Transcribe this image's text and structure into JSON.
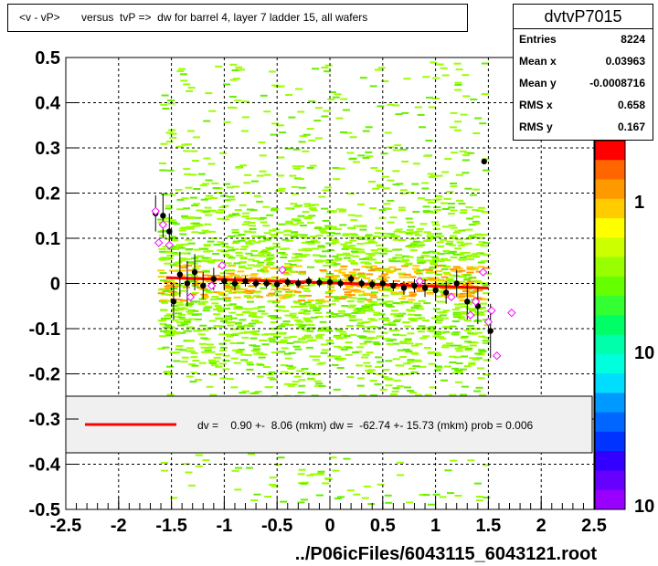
{
  "title": "<v - vP>       versus  tvP =>  dw for barrel 4, layer 7 ladder 15, all wafers",
  "stats": {
    "name": "dvtvP7015",
    "rows": [
      {
        "key": "Entries",
        "value": "8224"
      },
      {
        "key": "Mean x",
        "value": "0.03963"
      },
      {
        "key": "Mean y",
        "value": "-0.0008716"
      },
      {
        "key": "RMS x",
        "value": "0.658"
      },
      {
        "key": "RMS y",
        "value": "0.167"
      }
    ]
  },
  "legend": {
    "text": "dv =    0.90 +-  8.06 (mkm) dw =  -62.74 +- 15.73 (mkm) prob = 0.006",
    "line_color": "#ff0000"
  },
  "colors": {
    "fit_line": "#ff0000",
    "profile_points": "#000000",
    "open_markers": "#ff00ff"
  },
  "chart_data": {
    "type": "scatter",
    "xlabel": "../P06icFiles/6043115_6043121.root",
    "ylabel": "",
    "xlim": [
      -2.5,
      2.5
    ],
    "ylim": [
      -0.5,
      0.5
    ],
    "x_ticks": [
      "-2.5",
      "-2",
      "-1.5",
      "-1",
      "-0.5",
      "0",
      "0.5",
      "1",
      "1.5",
      "2",
      "2.5"
    ],
    "y_ticks": [
      "-0.5",
      "-0.4",
      "-0.3",
      "-0.2",
      "-0.1",
      "0",
      "0.1",
      "0.2",
      "0.3",
      "0.4",
      "0.5"
    ],
    "grid": true,
    "log_z": true,
    "z_ticks": [
      "1",
      "10",
      "10"
    ],
    "fit_line": {
      "x": [
        -1.55,
        1.5
      ],
      "y": [
        0.013,
        -0.01
      ]
    },
    "profile": [
      {
        "x": -1.65,
        "y": 0.155,
        "err": 0.04
      },
      {
        "x": -1.58,
        "y": 0.15,
        "err": 0.05
      },
      {
        "x": -1.52,
        "y": 0.115,
        "err": 0.04
      },
      {
        "x": -1.48,
        "y": -0.04,
        "err": 0.04
      },
      {
        "x": -1.42,
        "y": 0.02,
        "err": 0.05
      },
      {
        "x": -1.35,
        "y": 0.0,
        "err": 0.05
      },
      {
        "x": -1.28,
        "y": 0.025,
        "err": 0.04
      },
      {
        "x": -1.2,
        "y": -0.005,
        "err": 0.03
      },
      {
        "x": -1.1,
        "y": 0.01,
        "err": 0.025
      },
      {
        "x": -1.0,
        "y": 0.005,
        "err": 0.02
      },
      {
        "x": -0.9,
        "y": 0.0,
        "err": 0.015
      },
      {
        "x": -0.8,
        "y": 0.005,
        "err": 0.012
      },
      {
        "x": -0.7,
        "y": 0.0,
        "err": 0.01
      },
      {
        "x": -0.6,
        "y": 0.0,
        "err": 0.01
      },
      {
        "x": -0.5,
        "y": -0.002,
        "err": 0.01
      },
      {
        "x": -0.4,
        "y": 0.003,
        "err": 0.01
      },
      {
        "x": -0.3,
        "y": 0.0,
        "err": 0.01
      },
      {
        "x": -0.2,
        "y": 0.005,
        "err": 0.01
      },
      {
        "x": -0.1,
        "y": 0.002,
        "err": 0.01
      },
      {
        "x": 0.0,
        "y": 0.003,
        "err": 0.01
      },
      {
        "x": 0.1,
        "y": 0.0,
        "err": 0.01
      },
      {
        "x": 0.2,
        "y": 0.01,
        "err": 0.01
      },
      {
        "x": 0.3,
        "y": 0.0,
        "err": 0.01
      },
      {
        "x": 0.4,
        "y": -0.002,
        "err": 0.01
      },
      {
        "x": 0.5,
        "y": 0.0,
        "err": 0.012
      },
      {
        "x": 0.6,
        "y": -0.005,
        "err": 0.012
      },
      {
        "x": 0.7,
        "y": -0.01,
        "err": 0.015
      },
      {
        "x": 0.8,
        "y": -0.005,
        "err": 0.015
      },
      {
        "x": 0.9,
        "y": -0.01,
        "err": 0.02
      },
      {
        "x": 1.0,
        "y": -0.015,
        "err": 0.02
      },
      {
        "x": 1.1,
        "y": -0.02,
        "err": 0.025
      },
      {
        "x": 1.2,
        "y": 0.0,
        "err": 0.03
      },
      {
        "x": 1.3,
        "y": -0.04,
        "err": 0.04
      },
      {
        "x": 1.4,
        "y": -0.05,
        "err": 0.04
      },
      {
        "x": 1.46,
        "y": 0.27,
        "err": 0.0
      },
      {
        "x": 1.52,
        "y": -0.105,
        "err": 0.06
      }
    ],
    "open_markers": [
      {
        "x": -1.65,
        "y": 0.16
      },
      {
        "x": -1.62,
        "y": 0.09
      },
      {
        "x": -1.58,
        "y": 0.13
      },
      {
        "x": -1.52,
        "y": 0.085
      },
      {
        "x": -1.32,
        "y": -0.03
      },
      {
        "x": -1.12,
        "y": -0.005
      },
      {
        "x": -1.02,
        "y": 0.04
      },
      {
        "x": -0.45,
        "y": 0.03
      },
      {
        "x": 0.85,
        "y": 0.005
      },
      {
        "x": 1.15,
        "y": -0.03
      },
      {
        "x": 1.33,
        "y": -0.07
      },
      {
        "x": 1.38,
        "y": -0.04
      },
      {
        "x": 1.45,
        "y": 0.025
      },
      {
        "x": 1.5,
        "y": -0.085
      },
      {
        "x": 1.53,
        "y": -0.06
      },
      {
        "x": 1.58,
        "y": -0.16
      },
      {
        "x": 1.72,
        "y": -0.065
      }
    ]
  }
}
